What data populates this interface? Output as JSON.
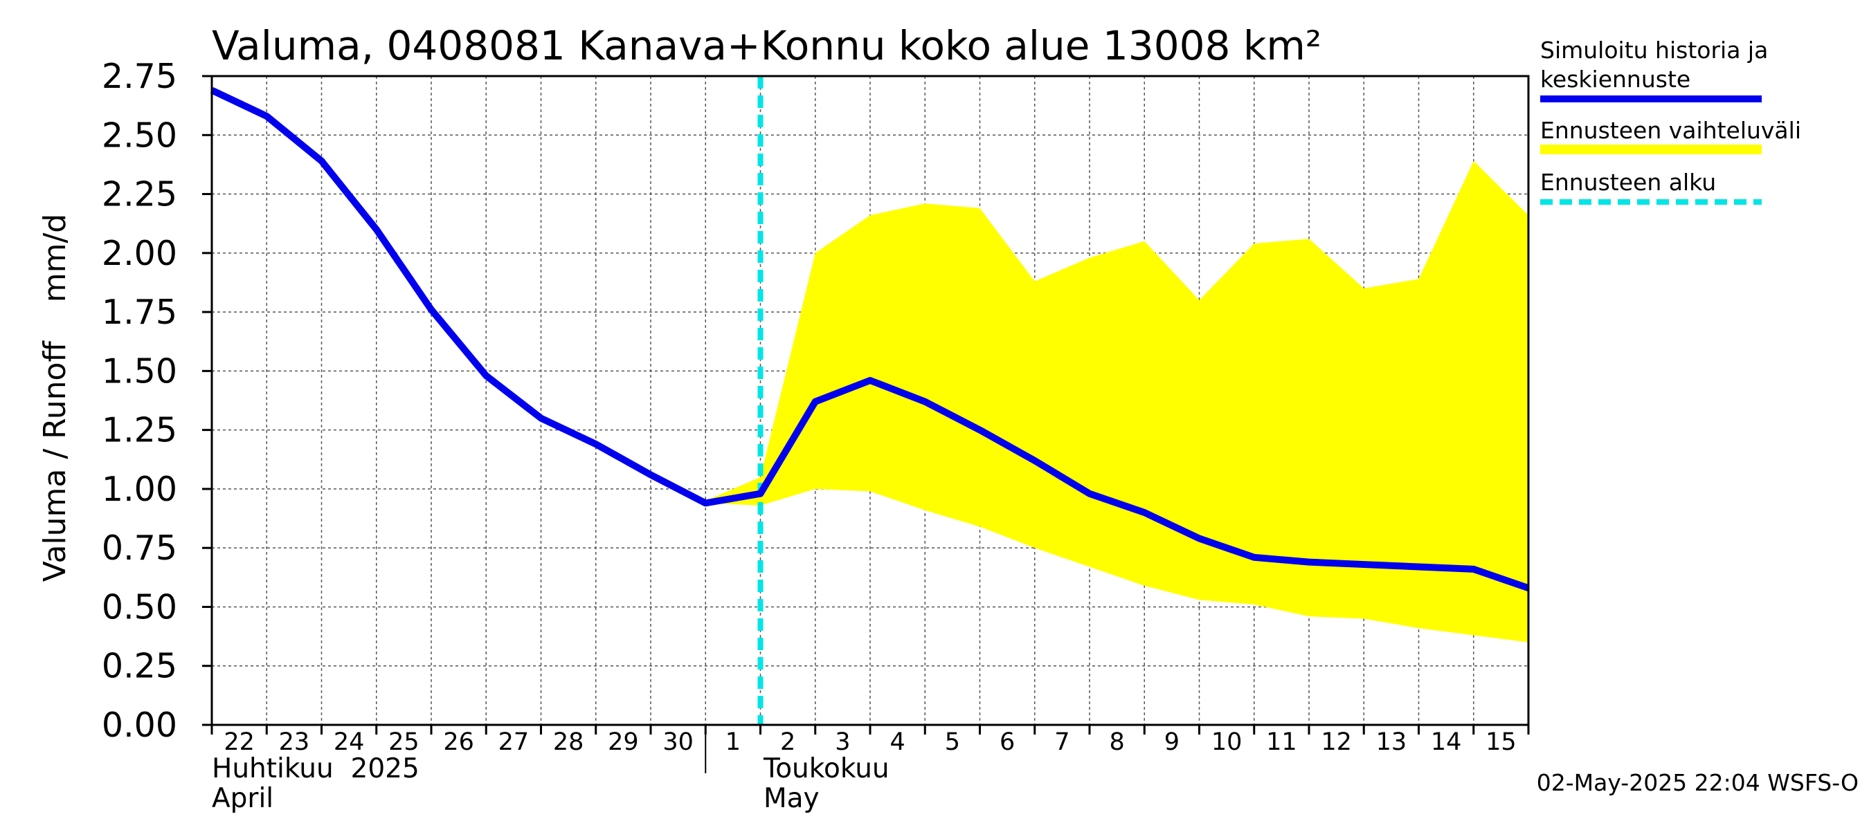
{
  "chart_data": {
    "type": "line",
    "title": "Valuma, 0408081 Kanava+Konnu koko alue 13008 km²",
    "ylabel": "Valuma / Runoff    mm/d",
    "ylim": [
      0,
      2.75
    ],
    "yticks": [
      "0.00",
      "0.25",
      "0.50",
      "0.75",
      "1.00",
      "1.25",
      "1.50",
      "1.75",
      "2.00",
      "2.25",
      "2.50",
      "2.75"
    ],
    "x_tick_labels": [
      "22",
      "23",
      "24",
      "25",
      "26",
      "27",
      "28",
      "29",
      "30",
      "1",
      "2",
      "3",
      "4",
      "5",
      "6",
      "7",
      "8",
      "9",
      "10",
      "11",
      "12",
      "13",
      "14",
      "15"
    ],
    "x_months": [
      {
        "line1": "Huhtikuu  2025",
        "line2": "April"
      },
      {
        "line1": "Toukokuu",
        "line2": "May"
      }
    ],
    "grid": true,
    "x_dates": [
      "2025-04-22",
      "2025-04-23",
      "2025-04-24",
      "2025-04-25",
      "2025-04-26",
      "2025-04-27",
      "2025-04-28",
      "2025-04-29",
      "2025-04-30",
      "2025-05-01",
      "2025-05-02",
      "2025-05-03",
      "2025-05-04",
      "2025-05-05",
      "2025-05-06",
      "2025-05-07",
      "2025-05-08",
      "2025-05-09",
      "2025-05-10",
      "2025-05-11",
      "2025-05-12",
      "2025-05-13",
      "2025-05-14",
      "2025-05-15",
      "2025-05-16"
    ],
    "series": [
      {
        "name": "Simuloitu historia ja keskiennuste",
        "color": "#0000ee",
        "values": [
          2.69,
          2.58,
          2.39,
          2.1,
          1.76,
          1.48,
          1.3,
          1.19,
          1.06,
          0.94,
          0.98,
          1.37,
          1.46,
          1.37,
          1.25,
          1.12,
          0.98,
          0.9,
          0.79,
          0.71,
          0.69,
          0.68,
          0.67,
          0.66,
          0.58
        ]
      }
    ],
    "band": {
      "name": "Ennusteen vaihteluväli",
      "color": "#ffff00",
      "x_dates": [
        "2025-05-01",
        "2025-05-02",
        "2025-05-03",
        "2025-05-04",
        "2025-05-05",
        "2025-05-06",
        "2025-05-07",
        "2025-05-08",
        "2025-05-09",
        "2025-05-10",
        "2025-05-11",
        "2025-05-12",
        "2025-05-13",
        "2025-05-14",
        "2025-05-15",
        "2025-05-16"
      ],
      "upper": [
        0.95,
        1.05,
        2.0,
        2.16,
        2.21,
        2.19,
        1.88,
        1.98,
        2.05,
        1.8,
        2.04,
        2.06,
        1.85,
        1.89,
        2.39,
        2.16
      ],
      "lower": [
        0.94,
        0.93,
        1.0,
        0.99,
        0.91,
        0.84,
        0.75,
        0.67,
        0.59,
        0.53,
        0.51,
        0.46,
        0.45,
        0.41,
        0.38,
        0.35
      ]
    },
    "forecast_start": {
      "name": "Ennusteen alku",
      "color": "#00e5e5",
      "date": "2025-05-02"
    },
    "legend": {
      "placement": "right",
      "entries": [
        {
          "label_line1": "Simuloitu historia ja",
          "label_line2": "keskiennuste",
          "color": "#0000ee",
          "style": "line"
        },
        {
          "label_line1": "Ennusteen vaihteluväli",
          "label_line2": "",
          "color": "#ffff00",
          "style": "band"
        },
        {
          "label_line1": "Ennusteen alku",
          "label_line2": "",
          "color": "#00e5e5",
          "style": "dashed"
        }
      ]
    }
  },
  "footer": "02-May-2025 22:04 WSFS-O"
}
